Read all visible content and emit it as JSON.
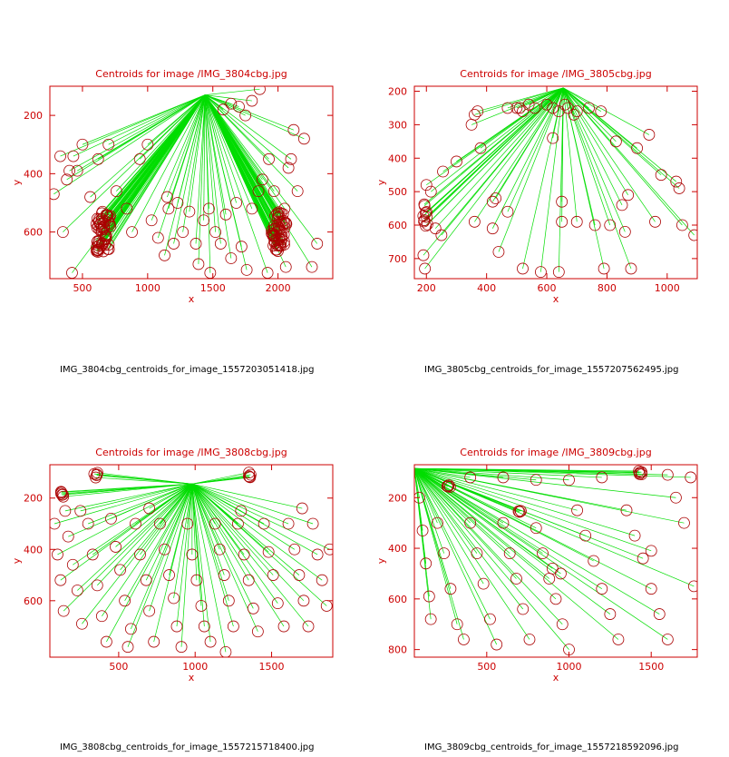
{
  "colors": {
    "axis": "#cc0000",
    "line": "#00dd00",
    "marker": "#aa0000",
    "caption": "#000000"
  },
  "chart_data": [
    {
      "type": "scatter",
      "title": "Centroids for image /IMG_3804cbg.jpg",
      "xlabel": "x",
      "ylabel": "y",
      "xlim": [
        250,
        2420
      ],
      "ylim": [
        760,
        100
      ],
      "xticks": [
        500,
        1000,
        1500,
        2000
      ],
      "yticks": [
        200,
        400,
        600
      ],
      "origin": [
        1440,
        130
      ],
      "clusters": [
        {
          "center": [
            660,
            600
          ],
          "count": 55,
          "spread": [
            55,
            70
          ]
        },
        {
          "center": [
            2010,
            600
          ],
          "count": 55,
          "spread": [
            60,
            70
          ]
        }
      ],
      "points": [
        [
          330,
          340
        ],
        [
          380,
          420
        ],
        [
          400,
          390
        ],
        [
          430,
          340
        ],
        [
          460,
          390
        ],
        [
          500,
          300
        ],
        [
          560,
          480
        ],
        [
          620,
          350
        ],
        [
          700,
          300
        ],
        [
          760,
          460
        ],
        [
          840,
          520
        ],
        [
          880,
          600
        ],
        [
          940,
          350
        ],
        [
          1000,
          300
        ],
        [
          1030,
          560
        ],
        [
          1080,
          620
        ],
        [
          1130,
          680
        ],
        [
          1160,
          520
        ],
        [
          1200,
          640
        ],
        [
          1230,
          500
        ],
        [
          1270,
          600
        ],
        [
          1320,
          530
        ],
        [
          1370,
          640
        ],
        [
          1390,
          710
        ],
        [
          1430,
          560
        ],
        [
          1470,
          520
        ],
        [
          1520,
          600
        ],
        [
          1560,
          640
        ],
        [
          1600,
          540
        ],
        [
          1640,
          690
        ],
        [
          1680,
          500
        ],
        [
          1720,
          650
        ],
        [
          1760,
          730
        ],
        [
          1800,
          520
        ],
        [
          1850,
          460
        ],
        [
          1880,
          420
        ],
        [
          1930,
          350
        ],
        [
          1970,
          460
        ],
        [
          2050,
          520
        ],
        [
          2080,
          380
        ],
        [
          2100,
          350
        ],
        [
          2150,
          460
        ],
        [
          2200,
          280
        ],
        [
          2260,
          720
        ],
        [
          2300,
          640
        ],
        [
          1700,
          170
        ],
        [
          1750,
          200
        ],
        [
          1800,
          150
        ],
        [
          1860,
          110
        ],
        [
          2120,
          250
        ],
        [
          1640,
          160
        ],
        [
          1580,
          180
        ],
        [
          1920,
          740
        ],
        [
          2060,
          720
        ],
        [
          1150,
          480
        ],
        [
          1480,
          740
        ],
        [
          280,
          470
        ],
        [
          350,
          600
        ],
        [
          420,
          740
        ]
      ]
    },
    {
      "type": "scatter",
      "title": "Centroids for image /IMG_3805cbg.jpg",
      "xlabel": "x",
      "ylabel": "y",
      "xlim": [
        160,
        1100
      ],
      "ylim": [
        760,
        185
      ],
      "xticks": [
        200,
        400,
        600,
        800,
        1000
      ],
      "yticks": [
        200,
        300,
        400,
        500,
        600,
        700
      ],
      "origin": [
        655,
        190
      ],
      "clusters": [
        {
          "center": [
            200,
            570
          ],
          "count": 10,
          "spread": [
            12,
            35
          ]
        }
      ],
      "points": [
        [
          190,
          690
        ],
        [
          195,
          730
        ],
        [
          200,
          480
        ],
        [
          215,
          500
        ],
        [
          230,
          610
        ],
        [
          250,
          630
        ],
        [
          255,
          440
        ],
        [
          300,
          410
        ],
        [
          350,
          300
        ],
        [
          360,
          270
        ],
        [
          370,
          260
        ],
        [
          380,
          370
        ],
        [
          420,
          610
        ],
        [
          430,
          520
        ],
        [
          440,
          680
        ],
        [
          470,
          250
        ],
        [
          500,
          250
        ],
        [
          510,
          250
        ],
        [
          520,
          260
        ],
        [
          540,
          240
        ],
        [
          560,
          250
        ],
        [
          600,
          240
        ],
        [
          620,
          250
        ],
        [
          640,
          260
        ],
        [
          660,
          240
        ],
        [
          670,
          250
        ],
        [
          690,
          270
        ],
        [
          700,
          260
        ],
        [
          740,
          250
        ],
        [
          780,
          260
        ],
        [
          830,
          350
        ],
        [
          850,
          540
        ],
        [
          870,
          510
        ],
        [
          900,
          370
        ],
        [
          940,
          330
        ],
        [
          980,
          450
        ],
        [
          1030,
          470
        ],
        [
          1040,
          490
        ],
        [
          1090,
          630
        ],
        [
          420,
          530
        ],
        [
          470,
          560
        ],
        [
          520,
          730
        ],
        [
          580,
          740
        ],
        [
          640,
          740
        ],
        [
          650,
          590
        ],
        [
          700,
          590
        ],
        [
          760,
          600
        ],
        [
          790,
          730
        ],
        [
          810,
          600
        ],
        [
          860,
          620
        ],
        [
          880,
          730
        ],
        [
          960,
          590
        ],
        [
          1050,
          600
        ],
        [
          360,
          590
        ],
        [
          650,
          530
        ],
        [
          620,
          340
        ]
      ]
    },
    {
      "type": "scatter",
      "title": "Centroids for image /IMG_3808cbg.jpg",
      "xlabel": "x",
      "ylabel": "y",
      "xlim": [
        50,
        1900
      ],
      "ylim": [
        820,
        70
      ],
      "xticks": [
        500,
        1000,
        1500
      ],
      "yticks": [
        200,
        400,
        600
      ],
      "origin": [
        980,
        145
      ],
      "clusters": [
        {
          "center": [
            130,
            185
          ],
          "count": 6,
          "spread": [
            10,
            10
          ]
        },
        {
          "center": [
            350,
            110
          ],
          "count": 5,
          "spread": [
            15,
            10
          ]
        },
        {
          "center": [
            1350,
            110
          ],
          "count": 5,
          "spread": [
            15,
            10
          ]
        }
      ],
      "points": [
        [
          80,
          300
        ],
        [
          100,
          420
        ],
        [
          120,
          520
        ],
        [
          140,
          640
        ],
        [
          170,
          350
        ],
        [
          200,
          460
        ],
        [
          230,
          560
        ],
        [
          260,
          690
        ],
        [
          300,
          300
        ],
        [
          330,
          420
        ],
        [
          360,
          540
        ],
        [
          390,
          660
        ],
        [
          420,
          760
        ],
        [
          450,
          280
        ],
        [
          480,
          390
        ],
        [
          510,
          480
        ],
        [
          540,
          600
        ],
        [
          580,
          710
        ],
        [
          610,
          300
        ],
        [
          640,
          420
        ],
        [
          680,
          520
        ],
        [
          700,
          640
        ],
        [
          730,
          760
        ],
        [
          770,
          300
        ],
        [
          800,
          400
        ],
        [
          830,
          500
        ],
        [
          860,
          590
        ],
        [
          880,
          700
        ],
        [
          910,
          780
        ],
        [
          950,
          300
        ],
        [
          980,
          420
        ],
        [
          1010,
          520
        ],
        [
          1040,
          620
        ],
        [
          1060,
          700
        ],
        [
          1100,
          760
        ],
        [
          1130,
          300
        ],
        [
          1160,
          400
        ],
        [
          1190,
          500
        ],
        [
          1220,
          600
        ],
        [
          1250,
          700
        ],
        [
          1280,
          300
        ],
        [
          1320,
          420
        ],
        [
          1350,
          520
        ],
        [
          1380,
          630
        ],
        [
          1410,
          720
        ],
        [
          1450,
          300
        ],
        [
          1480,
          410
        ],
        [
          1510,
          500
        ],
        [
          1540,
          610
        ],
        [
          1580,
          700
        ],
        [
          1610,
          300
        ],
        [
          1650,
          400
        ],
        [
          1680,
          500
        ],
        [
          1710,
          600
        ],
        [
          1740,
          700
        ],
        [
          1770,
          300
        ],
        [
          1800,
          420
        ],
        [
          1830,
          520
        ],
        [
          1860,
          620
        ],
        [
          1880,
          400
        ],
        [
          150,
          250
        ],
        [
          250,
          250
        ],
        [
          700,
          240
        ],
        [
          1300,
          250
        ],
        [
          1700,
          240
        ],
        [
          560,
          780
        ],
        [
          1200,
          800
        ]
      ]
    },
    {
      "type": "scatter",
      "title": "Centroids for image /IMG_3809cbg.jpg",
      "xlabel": "x",
      "ylabel": "y",
      "xlim": [
        60,
        1780
      ],
      "ylim": [
        830,
        70
      ],
      "xticks": [
        500,
        1000,
        1500
      ],
      "yticks": [
        200,
        400,
        600,
        800
      ],
      "origin": [
        60,
        85
      ],
      "clusters": [
        {
          "center": [
            1430,
            100
          ],
          "count": 6,
          "spread": [
            20,
            10
          ]
        },
        {
          "center": [
            700,
            255
          ],
          "count": 4,
          "spread": [
            8,
            8
          ]
        },
        {
          "center": [
            280,
            160
          ],
          "count": 4,
          "spread": [
            25,
            10
          ]
        }
      ],
      "points": [
        [
          90,
          200
        ],
        [
          110,
          330
        ],
        [
          130,
          460
        ],
        [
          150,
          590
        ],
        [
          160,
          680
        ],
        [
          200,
          300
        ],
        [
          240,
          420
        ],
        [
          280,
          560
        ],
        [
          320,
          700
        ],
        [
          360,
          760
        ],
        [
          400,
          300
        ],
        [
          440,
          420
        ],
        [
          480,
          540
        ],
        [
          520,
          680
        ],
        [
          560,
          780
        ],
        [
          600,
          300
        ],
        [
          640,
          420
        ],
        [
          680,
          520
        ],
        [
          720,
          640
        ],
        [
          760,
          760
        ],
        [
          800,
          320
        ],
        [
          840,
          420
        ],
        [
          880,
          520
        ],
        [
          920,
          600
        ],
        [
          960,
          700
        ],
        [
          1000,
          800
        ],
        [
          1050,
          250
        ],
        [
          1100,
          350
        ],
        [
          1150,
          450
        ],
        [
          1200,
          560
        ],
        [
          1250,
          660
        ],
        [
          1300,
          760
        ],
        [
          1350,
          250
        ],
        [
          1400,
          350
        ],
        [
          1450,
          440
        ],
        [
          1500,
          560
        ],
        [
          1550,
          660
        ],
        [
          1600,
          760
        ],
        [
          1650,
          200
        ],
        [
          1700,
          300
        ],
        [
          1740,
          120
        ],
        [
          1760,
          550
        ],
        [
          400,
          120
        ],
        [
          600,
          120
        ],
        [
          800,
          130
        ],
        [
          1000,
          130
        ],
        [
          1200,
          120
        ],
        [
          1600,
          110
        ],
        [
          1500,
          410
        ],
        [
          900,
          480
        ],
        [
          950,
          500
        ]
      ]
    }
  ],
  "captions": [
    "IMG_3804cbg_centroids_for_image_1557203051418.jpg",
    "IMG_3805cbg_centroids_for_image_1557207562495.jpg",
    "IMG_3808cbg_centroids_for_image_1557215718400.jpg",
    "IMG_3809cbg_centroids_for_image_1557218592096.jpg"
  ]
}
